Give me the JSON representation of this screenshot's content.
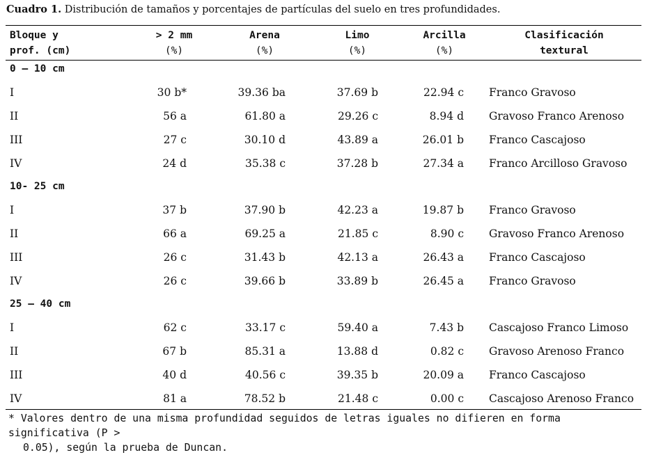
{
  "caption": {
    "label": "Cuadro 1.",
    "text": " Distribución de tamaños y porcentajes de partículas del suelo en tres profundidades."
  },
  "headers": {
    "bloque": {
      "line1": "Bloque y",
      "line2": "prof. (cm)"
    },
    "gravel": {
      "line1": "> 2 mm",
      "line2": "(%)"
    },
    "arena": {
      "line1": "Arena",
      "line2": "(%)"
    },
    "limo": {
      "line1": "Limo",
      "line2": "(%)"
    },
    "arcilla": {
      "line1": "Arcilla",
      "line2": "(%)"
    },
    "clasificacion": {
      "line1": "Clasificación",
      "line2": "textural"
    }
  },
  "groups": [
    {
      "label": "0 – 10 cm",
      "rows": [
        {
          "bloque": "I",
          "gravel": "30 b*",
          "arena": "39.36 ba",
          "limo": "37.69 b",
          "arcilla": "22.94 c",
          "clasificacion": "Franco Gravoso"
        },
        {
          "bloque": "II",
          "gravel": "56 a",
          "arena": "61.80 a",
          "limo": "29.26 c",
          "arcilla": "8.94 d",
          "clasificacion": "Gravoso Franco Arenoso"
        },
        {
          "bloque": "III",
          "gravel": "27 c",
          "arena": "30.10 d",
          "limo": "43.89 a",
          "arcilla": "26.01 b",
          "clasificacion": "Franco Cascajoso"
        },
        {
          "bloque": "IV",
          "gravel": "24 d",
          "arena": "35.38 c",
          "limo": "37.28 b",
          "arcilla": "27.34 a",
          "clasificacion": "Franco Arcilloso Gravoso"
        }
      ]
    },
    {
      "label": "10- 25 cm",
      "rows": [
        {
          "bloque": "I",
          "gravel": "37 b",
          "arena": "37.90 b",
          "limo": "42.23 a",
          "arcilla": "19.87 b",
          "clasificacion": "Franco Gravoso"
        },
        {
          "bloque": "II",
          "gravel": "66 a",
          "arena": "69.25 a",
          "limo": "21.85 c",
          "arcilla": "8.90 c",
          "clasificacion": "Gravoso Franco Arenoso"
        },
        {
          "bloque": "III",
          "gravel": "26 c",
          "arena": "31.43 b",
          "limo": "42.13 a",
          "arcilla": "26.43 a",
          "clasificacion": "Franco Cascajoso"
        },
        {
          "bloque": "IV",
          "gravel": "26 c",
          "arena": "39.66 b",
          "limo": "33.89 b",
          "arcilla": "26.45 a",
          "clasificacion": "Franco Gravoso"
        }
      ]
    },
    {
      "label": "25 – 40 cm",
      "rows": [
        {
          "bloque": "I",
          "gravel": "62 c",
          "arena": "33.17 c",
          "limo": "59.40 a",
          "arcilla": "7.43 b",
          "clasificacion": "Cascajoso Franco Limoso"
        },
        {
          "bloque": "II",
          "gravel": "67 b",
          "arena": "85.31 a",
          "limo": "13.88 d",
          "arcilla": "0.82 c",
          "clasificacion": "Gravoso Arenoso Franco"
        },
        {
          "bloque": "III",
          "gravel": "40 d",
          "arena": "40.56 c",
          "limo": "39.35 b",
          "arcilla": "20.09 a",
          "clasificacion": "Franco Cascajoso"
        },
        {
          "bloque": "IV",
          "gravel": "81 a",
          "arena": "78.52 b",
          "limo": "21.48 c",
          "arcilla": "0.00 c",
          "clasificacion": "Cascajoso Arenoso Franco"
        }
      ]
    }
  ],
  "footnote": {
    "line1": "* Valores dentro de una misma profundidad seguidos de letras iguales no difieren en forma significativa (P >",
    "line2": "0.05), según la prueba de Duncan."
  }
}
